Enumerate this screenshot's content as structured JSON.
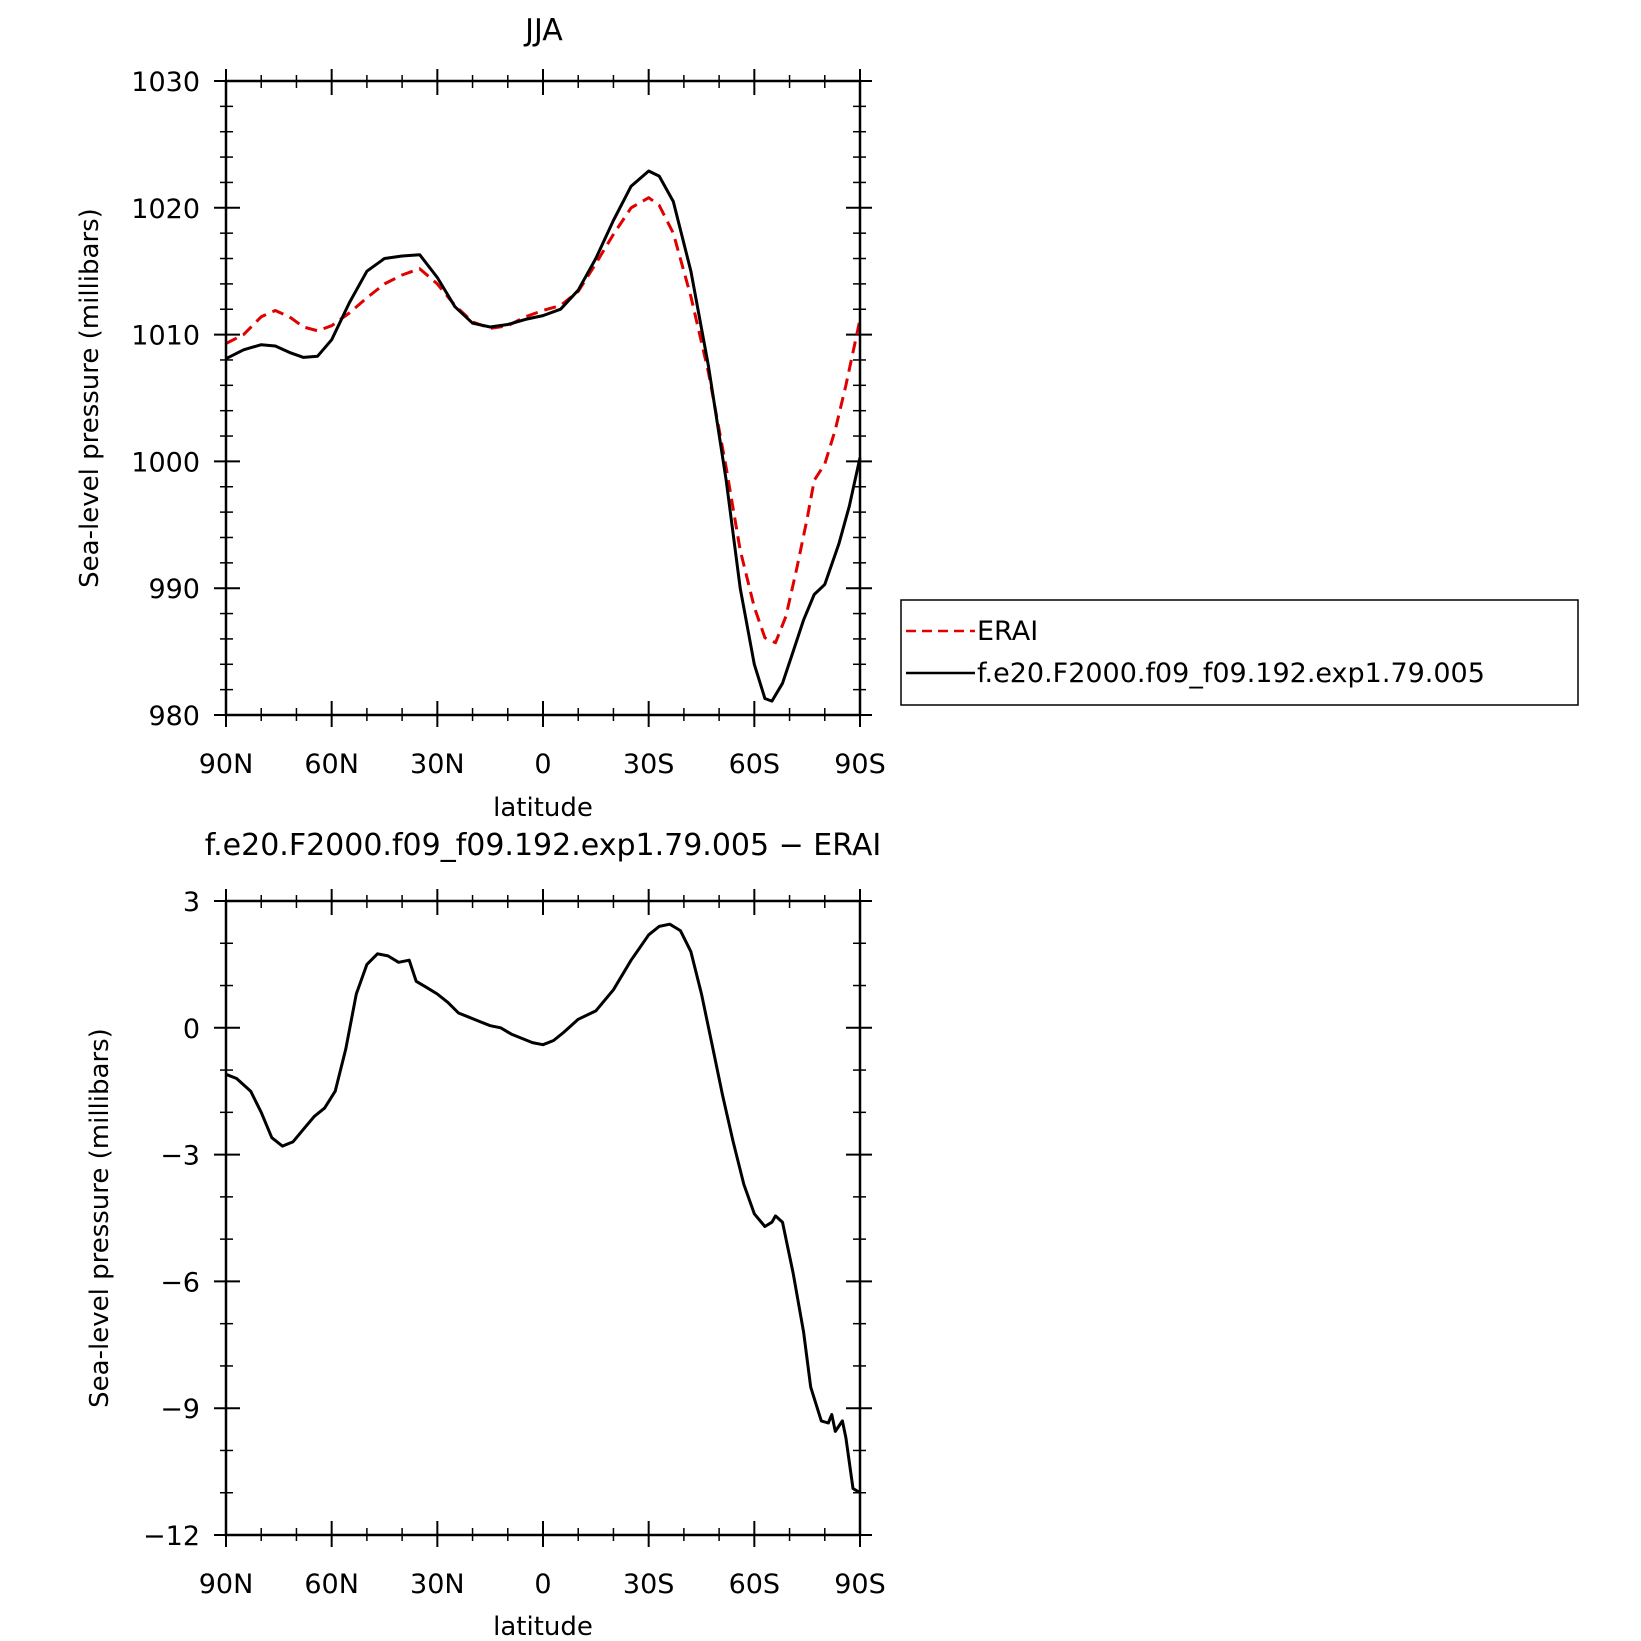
{
  "chart_data": [
    {
      "type": "line",
      "title": "JJA",
      "xlabel": "latitude",
      "ylabel": "Sea-level pressure (millibars)",
      "xlim": [
        90,
        -90
      ],
      "ylim": [
        980,
        1030
      ],
      "x_tick_values": [
        90,
        60,
        30,
        0,
        -30,
        -60,
        -90
      ],
      "x_tick_labels": [
        "90N",
        "60N",
        "30N",
        "0",
        "30S",
        "60S",
        "90S"
      ],
      "y_ticks": [
        980,
        990,
        1000,
        1010,
        1020,
        1030
      ],
      "y_tick_labels": [
        "980",
        "990",
        "1000",
        "1010",
        "1020",
        "1030"
      ],
      "legend_position": "right",
      "series": [
        {
          "name": "ERAI",
          "color": "#e00000",
          "dash": "dashed",
          "points": [
            [
              90,
              1009.3
            ],
            [
              85,
              1010
            ],
            [
              80,
              1011.4
            ],
            [
              76,
              1011.9
            ],
            [
              72,
              1011.4
            ],
            [
              68,
              1010.6
            ],
            [
              64,
              1010.3
            ],
            [
              60,
              1010.7
            ],
            [
              55,
              1011.7
            ],
            [
              50,
              1012.9
            ],
            [
              45,
              1014
            ],
            [
              40,
              1014.7
            ],
            [
              35,
              1015.2
            ],
            [
              30,
              1014
            ],
            [
              25,
              1012.3
            ],
            [
              20,
              1011
            ],
            [
              15,
              1010.5
            ],
            [
              10,
              1010.7
            ],
            [
              5,
              1011.4
            ],
            [
              0,
              1011.9
            ],
            [
              -5,
              1012.3
            ],
            [
              -10,
              1013.4
            ],
            [
              -15,
              1015.6
            ],
            [
              -20,
              1017.9
            ],
            [
              -25,
              1020
            ],
            [
              -30,
              1020.8
            ],
            [
              -33,
              1020.2
            ],
            [
              -37,
              1018
            ],
            [
              -42,
              1013
            ],
            [
              -47,
              1007
            ],
            [
              -52,
              999.5
            ],
            [
              -56,
              993
            ],
            [
              -60,
              988.5
            ],
            [
              -63,
              986.1
            ],
            [
              -66,
              985.7
            ],
            [
              -69,
              987.8
            ],
            [
              -72,
              991.5
            ],
            [
              -75,
              995.5
            ],
            [
              -77,
              998.5
            ],
            [
              -80,
              999.8
            ],
            [
              -83,
              1002.5
            ],
            [
              -86,
              1006
            ],
            [
              -90,
              1011.2
            ]
          ]
        },
        {
          "name": "f.e20.F2000.f09_f09.192.exp1.79.005",
          "color": "#000000",
          "dash": "solid",
          "points": [
            [
              90,
              1008.1
            ],
            [
              85,
              1008.8
            ],
            [
              80,
              1009.2
            ],
            [
              76,
              1009.1
            ],
            [
              72,
              1008.6
            ],
            [
              68,
              1008.2
            ],
            [
              64,
              1008.3
            ],
            [
              60,
              1009.6
            ],
            [
              55,
              1012.5
            ],
            [
              50,
              1015
            ],
            [
              45,
              1016
            ],
            [
              40,
              1016.2
            ],
            [
              35,
              1016.3
            ],
            [
              30,
              1014.5
            ],
            [
              25,
              1012.2
            ],
            [
              20,
              1010.9
            ],
            [
              15,
              1010.6
            ],
            [
              10,
              1010.8
            ],
            [
              5,
              1011.2
            ],
            [
              0,
              1011.5
            ],
            [
              -5,
              1012
            ],
            [
              -10,
              1013.5
            ],
            [
              -15,
              1016
            ],
            [
              -20,
              1019
            ],
            [
              -25,
              1021.7
            ],
            [
              -30,
              1022.9
            ],
            [
              -33,
              1022.5
            ],
            [
              -37,
              1020.5
            ],
            [
              -42,
              1015
            ],
            [
              -47,
              1007.5
            ],
            [
              -52,
              998.5
            ],
            [
              -56,
              990
            ],
            [
              -60,
              984
            ],
            [
              -63,
              981.3
            ],
            [
              -65,
              981.1
            ],
            [
              -68,
              982.5
            ],
            [
              -71,
              985
            ],
            [
              -74,
              987.5
            ],
            [
              -77,
              989.5
            ],
            [
              -80,
              990.3
            ],
            [
              -84,
              993.5
            ],
            [
              -87,
              996.5
            ],
            [
              -90,
              1000.3
            ]
          ]
        }
      ]
    },
    {
      "type": "line",
      "title": "f.e20.F2000.f09_f09.192.exp1.79.005 − ERAI",
      "xlabel": "latitude",
      "ylabel": "Sea-level pressure (millibars)",
      "xlim": [
        90,
        -90
      ],
      "ylim": [
        -12,
        3
      ],
      "x_tick_values": [
        90,
        60,
        30,
        0,
        -30,
        -60,
        -90
      ],
      "x_tick_labels": [
        "90N",
        "60N",
        "30N",
        "0",
        "30S",
        "60S",
        "90S"
      ],
      "y_ticks": [
        -12,
        -9,
        -6,
        -3,
        0,
        3
      ],
      "y_tick_labels": [
        "−12",
        "−9",
        "−6",
        "−3",
        "0",
        "3"
      ],
      "series": [
        {
          "name": "",
          "color": "#000000",
          "dash": "solid",
          "points": [
            [
              90,
              -1.1
            ],
            [
              87,
              -1.2
            ],
            [
              83,
              -1.5
            ],
            [
              80,
              -2
            ],
            [
              77,
              -2.6
            ],
            [
              74,
              -2.8
            ],
            [
              71,
              -2.7
            ],
            [
              68,
              -2.4
            ],
            [
              65,
              -2.1
            ],
            [
              62,
              -1.9
            ],
            [
              59,
              -1.5
            ],
            [
              56,
              -0.5
            ],
            [
              53,
              0.8
            ],
            [
              50,
              1.5
            ],
            [
              47,
              1.75
            ],
            [
              44,
              1.7
            ],
            [
              41,
              1.55
            ],
            [
              38,
              1.6
            ],
            [
              36,
              1.1
            ],
            [
              33,
              0.95
            ],
            [
              30,
              0.8
            ],
            [
              27,
              0.6
            ],
            [
              24,
              0.35
            ],
            [
              21,
              0.25
            ],
            [
              18,
              0.15
            ],
            [
              15,
              0.05
            ],
            [
              12,
              0
            ],
            [
              9,
              -0.15
            ],
            [
              6,
              -0.25
            ],
            [
              3,
              -0.35
            ],
            [
              0,
              -0.4
            ],
            [
              -3,
              -0.3
            ],
            [
              -6,
              -0.1
            ],
            [
              -10,
              0.2
            ],
            [
              -15,
              0.4
            ],
            [
              -20,
              0.9
            ],
            [
              -25,
              1.6
            ],
            [
              -30,
              2.2
            ],
            [
              -33,
              2.4
            ],
            [
              -36,
              2.45
            ],
            [
              -39,
              2.3
            ],
            [
              -42,
              1.8
            ],
            [
              -45,
              0.8
            ],
            [
              -48,
              -0.4
            ],
            [
              -51,
              -1.6
            ],
            [
              -54,
              -2.7
            ],
            [
              -57,
              -3.7
            ],
            [
              -60,
              -4.4
            ],
            [
              -63,
              -4.7
            ],
            [
              -65,
              -4.6
            ],
            [
              -66,
              -4.45
            ],
            [
              -68,
              -4.6
            ],
            [
              -71,
              -5.8
            ],
            [
              -74,
              -7.2
            ],
            [
              -76,
              -8.5
            ],
            [
              -79,
              -9.3
            ],
            [
              -81,
              -9.35
            ],
            [
              -82,
              -9.15
            ],
            [
              -83,
              -9.55
            ],
            [
              -85,
              -9.3
            ],
            [
              -86,
              -9.7
            ],
            [
              -88,
              -10.9
            ],
            [
              -90,
              -11
            ]
          ]
        }
      ]
    }
  ]
}
